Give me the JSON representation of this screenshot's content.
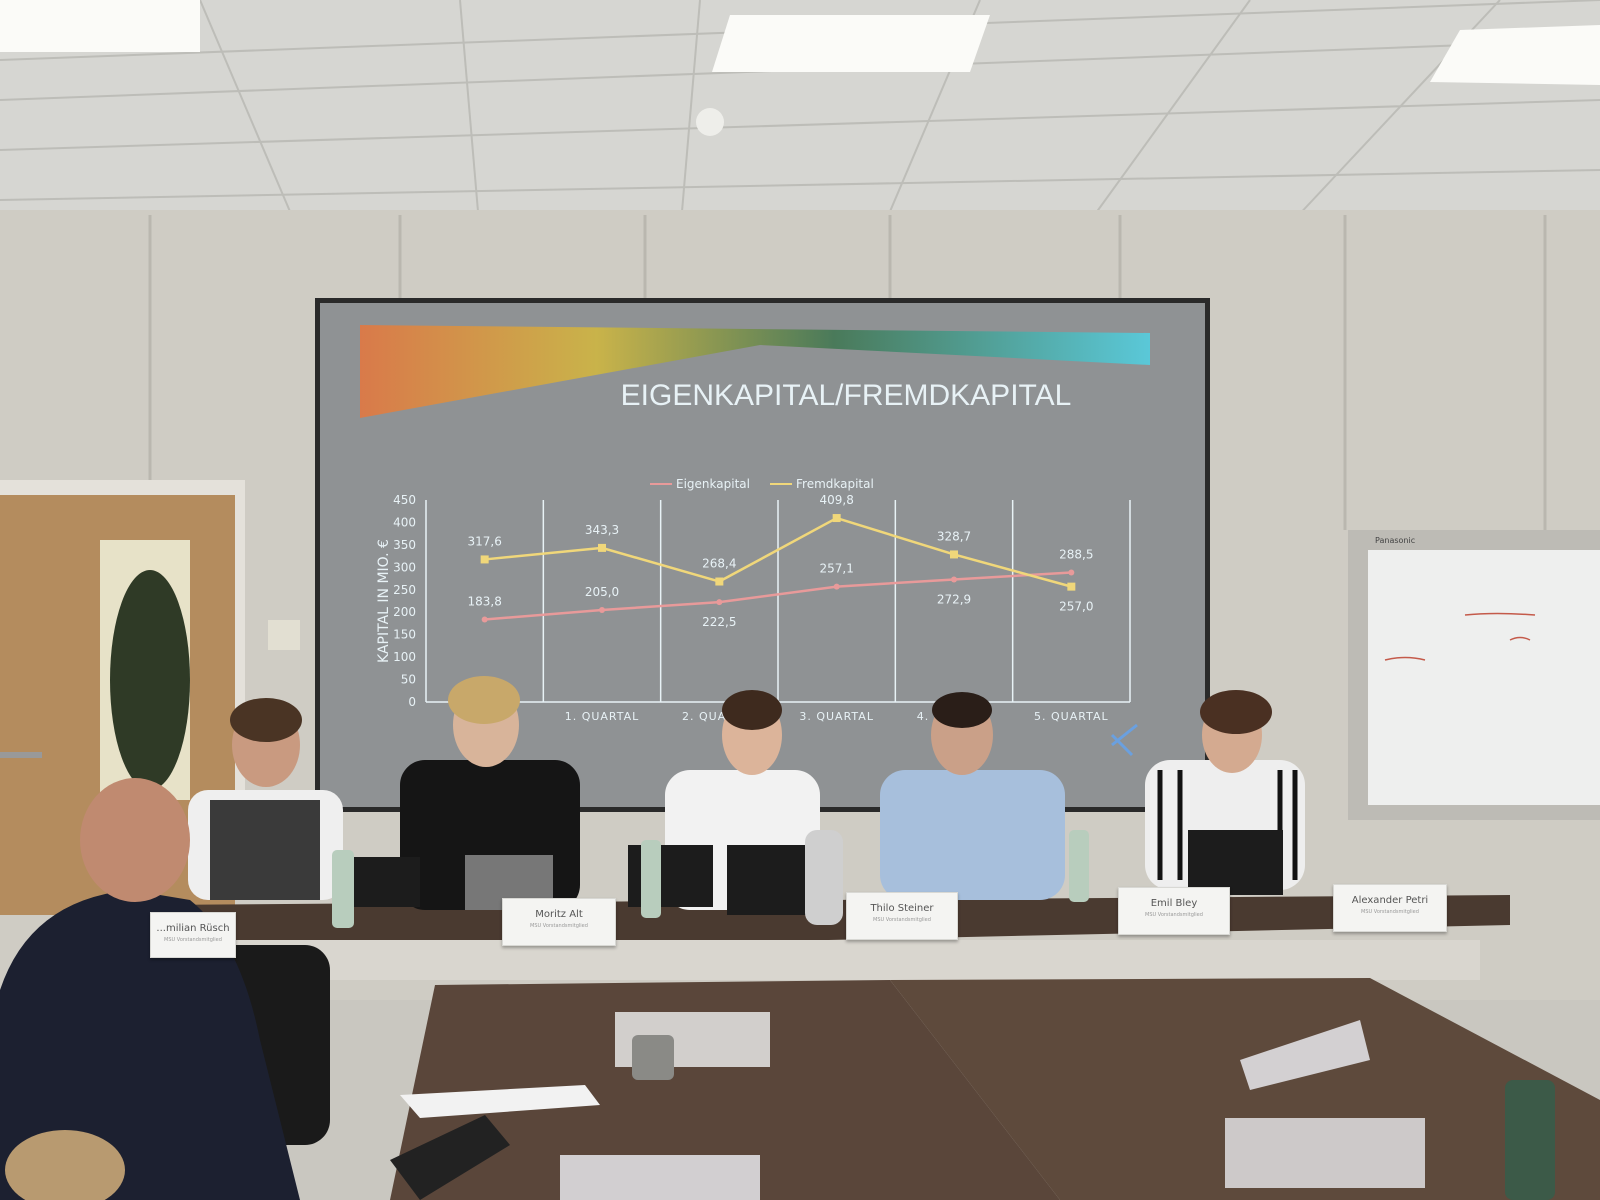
{
  "slide": {
    "title": "EIGENKAPITAL/FREMDKAPITAL"
  },
  "chart_data": {
    "type": "line",
    "title": "EIGENKAPITAL/FREMDKAPITAL",
    "ylabel": "KAPITAL IN MIO. €",
    "xlabel": "",
    "ylim": [
      0,
      450
    ],
    "yticks": [
      0,
      50,
      100,
      150,
      200,
      250,
      300,
      350,
      400,
      450
    ],
    "categories": [
      "",
      "1. QUARTAL",
      "2. QUARTAL",
      "3. QUARTAL",
      "4. QUARTAL",
      "5. QUARTAL"
    ],
    "grid": "vertical",
    "legend": "top",
    "series": [
      {
        "name": "Eigenkapital",
        "color": "#e89a9a",
        "values": [
          183.8,
          205.0,
          222.5,
          257.1,
          272.9,
          288.5
        ],
        "labels": [
          "183,8",
          "205,0",
          "222,5",
          "257,1",
          "272,9",
          "288,5"
        ]
      },
      {
        "name": "Fremdkapital",
        "color": "#f0d77a",
        "values": [
          317.6,
          343.3,
          268.4,
          409.8,
          328.7,
          257.0
        ],
        "labels": [
          "317,6",
          "343,3",
          "268,4",
          "409,8",
          "328,7",
          "257,0"
        ]
      }
    ]
  },
  "name_cards": [
    {
      "name": "...milian Rüsch",
      "role": "MSU Vorstandsmitglied"
    },
    {
      "name": "Moritz Alt",
      "role": "MSU Vorstandsmitglied"
    },
    {
      "name": "Thilo Steiner",
      "role": "MSU Vorstandsmitglied"
    },
    {
      "name": "Emil Bley",
      "role": "MSU Vorstandsmitglied"
    },
    {
      "name": "Alexander Petri",
      "role": "MSU Vorstandsmitglied"
    }
  ],
  "whiteboard_brand": "Panasonic",
  "colors": {
    "screen": "#8f9294",
    "chart_text": "#e8f2f6",
    "table": "#4a3a30"
  }
}
